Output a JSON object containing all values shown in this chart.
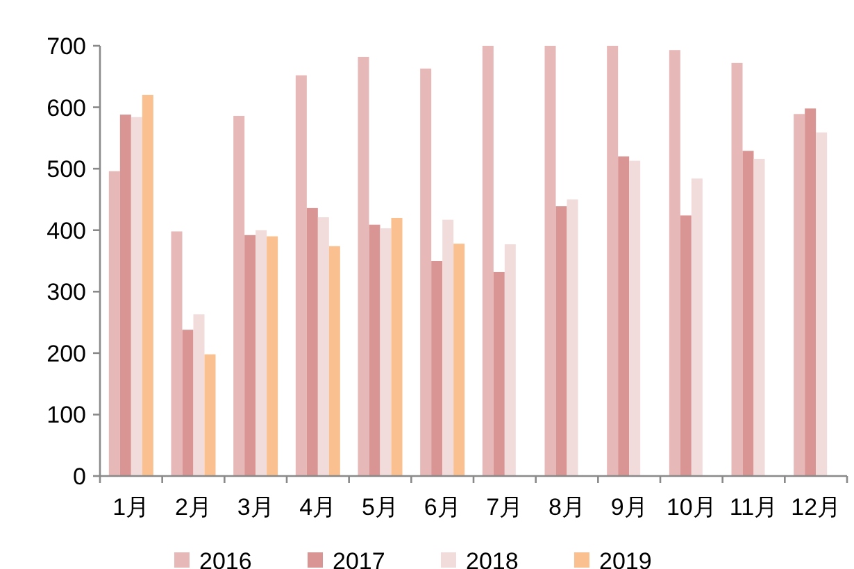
{
  "chart_data": {
    "type": "bar",
    "categories": [
      "1月",
      "2月",
      "3月",
      "4月",
      "5月",
      "6月",
      "7月",
      "8月",
      "9月",
      "10月",
      "11月",
      "12月"
    ],
    "series": [
      {
        "name": "2016",
        "color": "#e6b8b7",
        "values": [
          496,
          398,
          586,
          652,
          682,
          663,
          700,
          700,
          700,
          693,
          672,
          589
        ]
      },
      {
        "name": "2017",
        "color": "#d99594",
        "values": [
          588,
          238,
          392,
          436,
          409,
          350,
          332,
          439,
          520,
          424,
          529,
          598
        ]
      },
      {
        "name": "2018",
        "color": "#f2dcdb",
        "values": [
          584,
          263,
          400,
          421,
          403,
          417,
          377,
          450,
          513,
          484,
          516,
          559
        ]
      },
      {
        "name": "2019",
        "color": "#fac090",
        "values": [
          620,
          198,
          390,
          374,
          420,
          378,
          null,
          null,
          null,
          null,
          null,
          null
        ]
      }
    ],
    "ylim": [
      0,
      700
    ],
    "yticks": [
      0,
      100,
      200,
      300,
      400,
      500,
      600,
      700
    ],
    "grid": false,
    "legend": "bottom"
  }
}
